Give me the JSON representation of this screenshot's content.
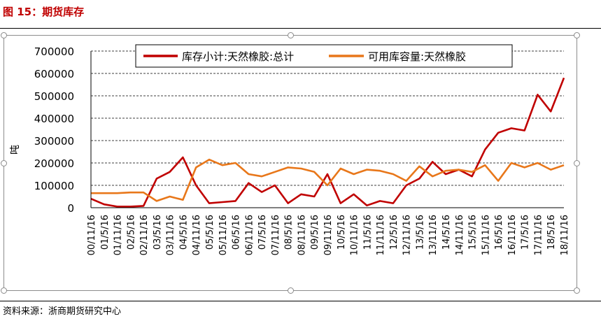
{
  "figure_title": "图 15：期货库存",
  "source_text": "资料来源：浙商期货研究中心",
  "chart_data": {
    "type": "line",
    "ylabel": "吨",
    "ylim": [
      0,
      700000
    ],
    "yticks": [
      "0",
      "100000",
      "200000",
      "300000",
      "400000",
      "500000",
      "600000",
      "700000"
    ],
    "x_labels": [
      "00/11/16",
      "01/5/16",
      "01/11/16",
      "02/5/16",
      "02/11/16",
      "03/5/16",
      "03/11/16",
      "04/5/16",
      "04/11/16",
      "05/5/16",
      "05/11/16",
      "06/5/16",
      "06/11/16",
      "07/5/16",
      "07/11/16",
      "08/5/16",
      "08/11/16",
      "09/5/16",
      "09/11/16",
      "10/5/16",
      "10/11/16",
      "11/5/16",
      "11/11/16",
      "12/5/16",
      "12/11/16",
      "13/5/16",
      "13/11/16",
      "14/5/16",
      "14/11/16",
      "15/5/16",
      "15/11/16",
      "16/5/16",
      "16/11/16",
      "17/5/16",
      "17/11/16",
      "18/5/16",
      "18/11/16"
    ],
    "grid": true,
    "legend_position": "top",
    "series": [
      {
        "name": "库存小计:天然橡胶:总计",
        "color": "#c00000",
        "values": [
          40000,
          15000,
          5000,
          5000,
          8000,
          130000,
          160000,
          225000,
          100000,
          20000,
          25000,
          30000,
          110000,
          70000,
          100000,
          20000,
          60000,
          50000,
          150000,
          20000,
          60000,
          10000,
          30000,
          20000,
          100000,
          130000,
          205000,
          150000,
          170000,
          140000,
          260000,
          335000,
          355000,
          345000,
          505000,
          430000,
          580000
        ]
      },
      {
        "name": "可用库容量:天然橡胶",
        "color": "#e8771a",
        "values": [
          65000,
          65000,
          65000,
          68000,
          68000,
          30000,
          50000,
          35000,
          180000,
          215000,
          190000,
          200000,
          150000,
          140000,
          160000,
          180000,
          175000,
          160000,
          100000,
          175000,
          150000,
          170000,
          165000,
          150000,
          120000,
          185000,
          140000,
          165000,
          170000,
          160000,
          190000,
          120000,
          200000,
          180000,
          200000,
          170000,
          190000
        ]
      }
    ]
  }
}
